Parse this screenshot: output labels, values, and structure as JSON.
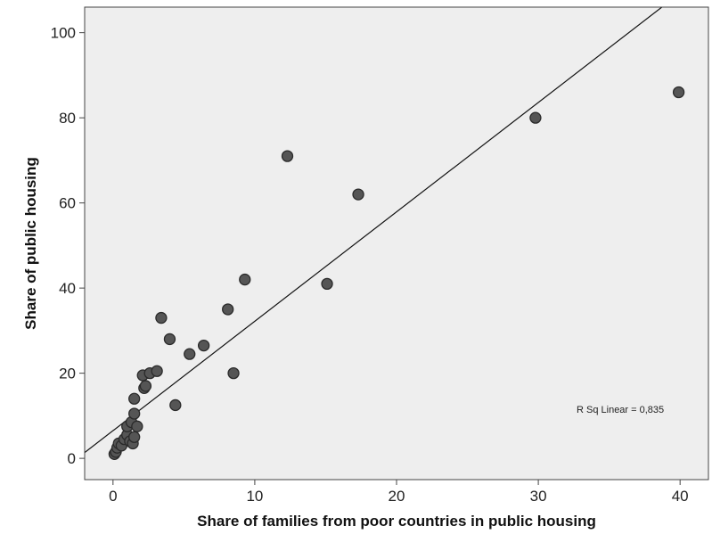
{
  "chart_data": {
    "type": "scatter",
    "xlabel": "Share of families from poor countries in public housing",
    "ylabel": "Share of public housing",
    "xlim": [
      -2,
      42
    ],
    "ylim": [
      -5,
      106
    ],
    "x_ticks": [
      0,
      10,
      20,
      30,
      40
    ],
    "y_ticks": [
      0,
      20,
      40,
      60,
      80,
      100
    ],
    "grid": false,
    "colors": {
      "plot_bg": "#eeeeee",
      "point": "#555555",
      "point_edge": "#2a2a2a",
      "line": "#111111"
    },
    "points": [
      {
        "x": 0.1,
        "y": 1.0
      },
      {
        "x": 0.2,
        "y": 1.5
      },
      {
        "x": 0.3,
        "y": 2.5
      },
      {
        "x": 0.4,
        "y": 3.5
      },
      {
        "x": 0.6,
        "y": 3.0
      },
      {
        "x": 0.8,
        "y": 4.5
      },
      {
        "x": 1.0,
        "y": 5.5
      },
      {
        "x": 1.2,
        "y": 4.0
      },
      {
        "x": 1.4,
        "y": 3.5
      },
      {
        "x": 1.5,
        "y": 5.0
      },
      {
        "x": 1.0,
        "y": 7.5
      },
      {
        "x": 1.3,
        "y": 8.5
      },
      {
        "x": 1.7,
        "y": 7.5
      },
      {
        "x": 1.5,
        "y": 10.5
      },
      {
        "x": 1.5,
        "y": 14.0
      },
      {
        "x": 2.2,
        "y": 16.5
      },
      {
        "x": 2.3,
        "y": 17.0
      },
      {
        "x": 2.1,
        "y": 19.5
      },
      {
        "x": 2.6,
        "y": 20.0
      },
      {
        "x": 3.1,
        "y": 20.5
      },
      {
        "x": 3.4,
        "y": 33.0
      },
      {
        "x": 4.0,
        "y": 28.0
      },
      {
        "x": 4.4,
        "y": 12.5
      },
      {
        "x": 5.4,
        "y": 24.5
      },
      {
        "x": 6.4,
        "y": 26.5
      },
      {
        "x": 8.1,
        "y": 35.0
      },
      {
        "x": 8.5,
        "y": 20.0
      },
      {
        "x": 9.3,
        "y": 42.0
      },
      {
        "x": 12.3,
        "y": 71.0
      },
      {
        "x": 15.1,
        "y": 41.0
      },
      {
        "x": 17.3,
        "y": 62.0
      },
      {
        "x": 29.8,
        "y": 80.0
      },
      {
        "x": 39.9,
        "y": 86.0
      }
    ],
    "fit_line": {
      "intercept": 6.5,
      "slope": 2.57
    },
    "annotation": "R Sq Linear = 0,835"
  }
}
